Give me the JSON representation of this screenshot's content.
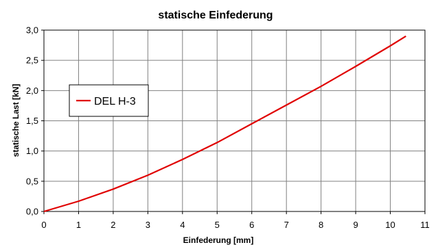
{
  "chart_data": {
    "type": "line",
    "title": "statische Einfederung",
    "xlabel": "Einfederung [mm]",
    "ylabel": "statische Last [kN]",
    "xlim": [
      0,
      11
    ],
    "ylim": [
      0,
      3
    ],
    "x_ticks": [
      "0",
      "1",
      "2",
      "3",
      "4",
      "5",
      "6",
      "7",
      "8",
      "9",
      "10",
      "11"
    ],
    "y_ticks": [
      "0,0",
      "0,5",
      "1,0",
      "1,5",
      "2,0",
      "2,5",
      "3,0"
    ],
    "grid": true,
    "legend_position": "left",
    "series": [
      {
        "name": "DEL H-3",
        "color": "#e00000",
        "x": [
          0,
          1,
          2,
          3,
          4,
          5,
          6,
          7,
          8,
          9,
          10,
          10.45
        ],
        "y": [
          0,
          0.17,
          0.37,
          0.6,
          0.86,
          1.14,
          1.45,
          1.76,
          2.07,
          2.4,
          2.74,
          2.9
        ]
      }
    ]
  }
}
